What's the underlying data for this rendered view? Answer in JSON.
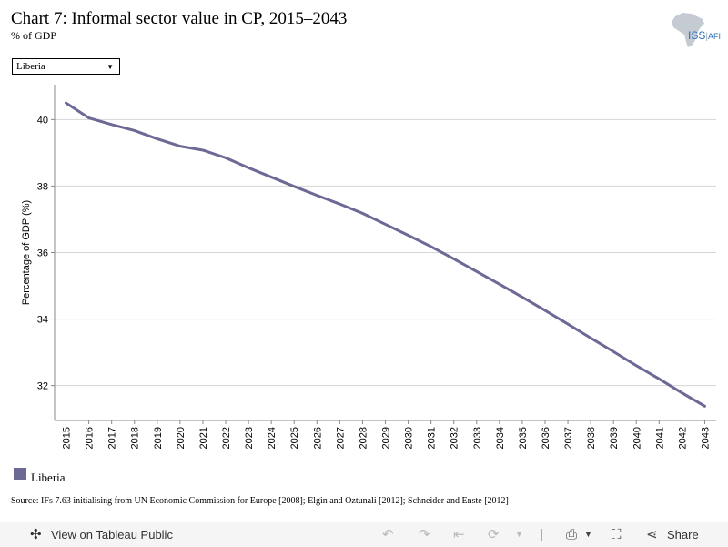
{
  "header": {
    "title": "Chart 7: Informal sector value in CP, 2015–2043",
    "subtitle": "% of GDP",
    "logo_text": "ISS|AFI"
  },
  "filter": {
    "selected": "Liberia"
  },
  "chart_data": {
    "type": "line",
    "title": "Chart 7: Informal sector value in CP, 2015–2043",
    "subtitle": "% of GDP",
    "xlabel": "",
    "ylabel": "Percentage of GDP (%)",
    "x": [
      2015,
      2016,
      2017,
      2018,
      2019,
      2020,
      2021,
      2022,
      2023,
      2024,
      2025,
      2026,
      2027,
      2028,
      2029,
      2030,
      2031,
      2032,
      2033,
      2034,
      2035,
      2036,
      2037,
      2038,
      2039,
      2040,
      2041,
      2042,
      2043
    ],
    "yticks": [
      32,
      34,
      36,
      38,
      40
    ],
    "ylim": [
      30.95,
      41.05
    ],
    "grid": true,
    "legend_position": "bottom-left",
    "series": [
      {
        "name": "Liberia",
        "color": "#6c6996",
        "values": [
          40.5,
          40.05,
          39.85,
          39.67,
          39.42,
          39.2,
          39.08,
          38.85,
          38.55,
          38.27,
          37.99,
          37.72,
          37.46,
          37.18,
          36.85,
          36.52,
          36.18,
          35.81,
          35.43,
          35.05,
          34.66,
          34.26,
          33.85,
          33.43,
          33.02,
          32.6,
          32.2,
          31.78,
          31.38
        ]
      }
    ]
  },
  "legend": {
    "label": "Liberia",
    "color": "#6c6996"
  },
  "source": "Source: IFs 7.63 initialising from UN Economic Commission for Europe [2008]; Elgin and Oztunali [2012]; Schneider and Enste [2012]",
  "toolbar": {
    "view_label": "View on Tableau Public",
    "share_label": "Share"
  }
}
